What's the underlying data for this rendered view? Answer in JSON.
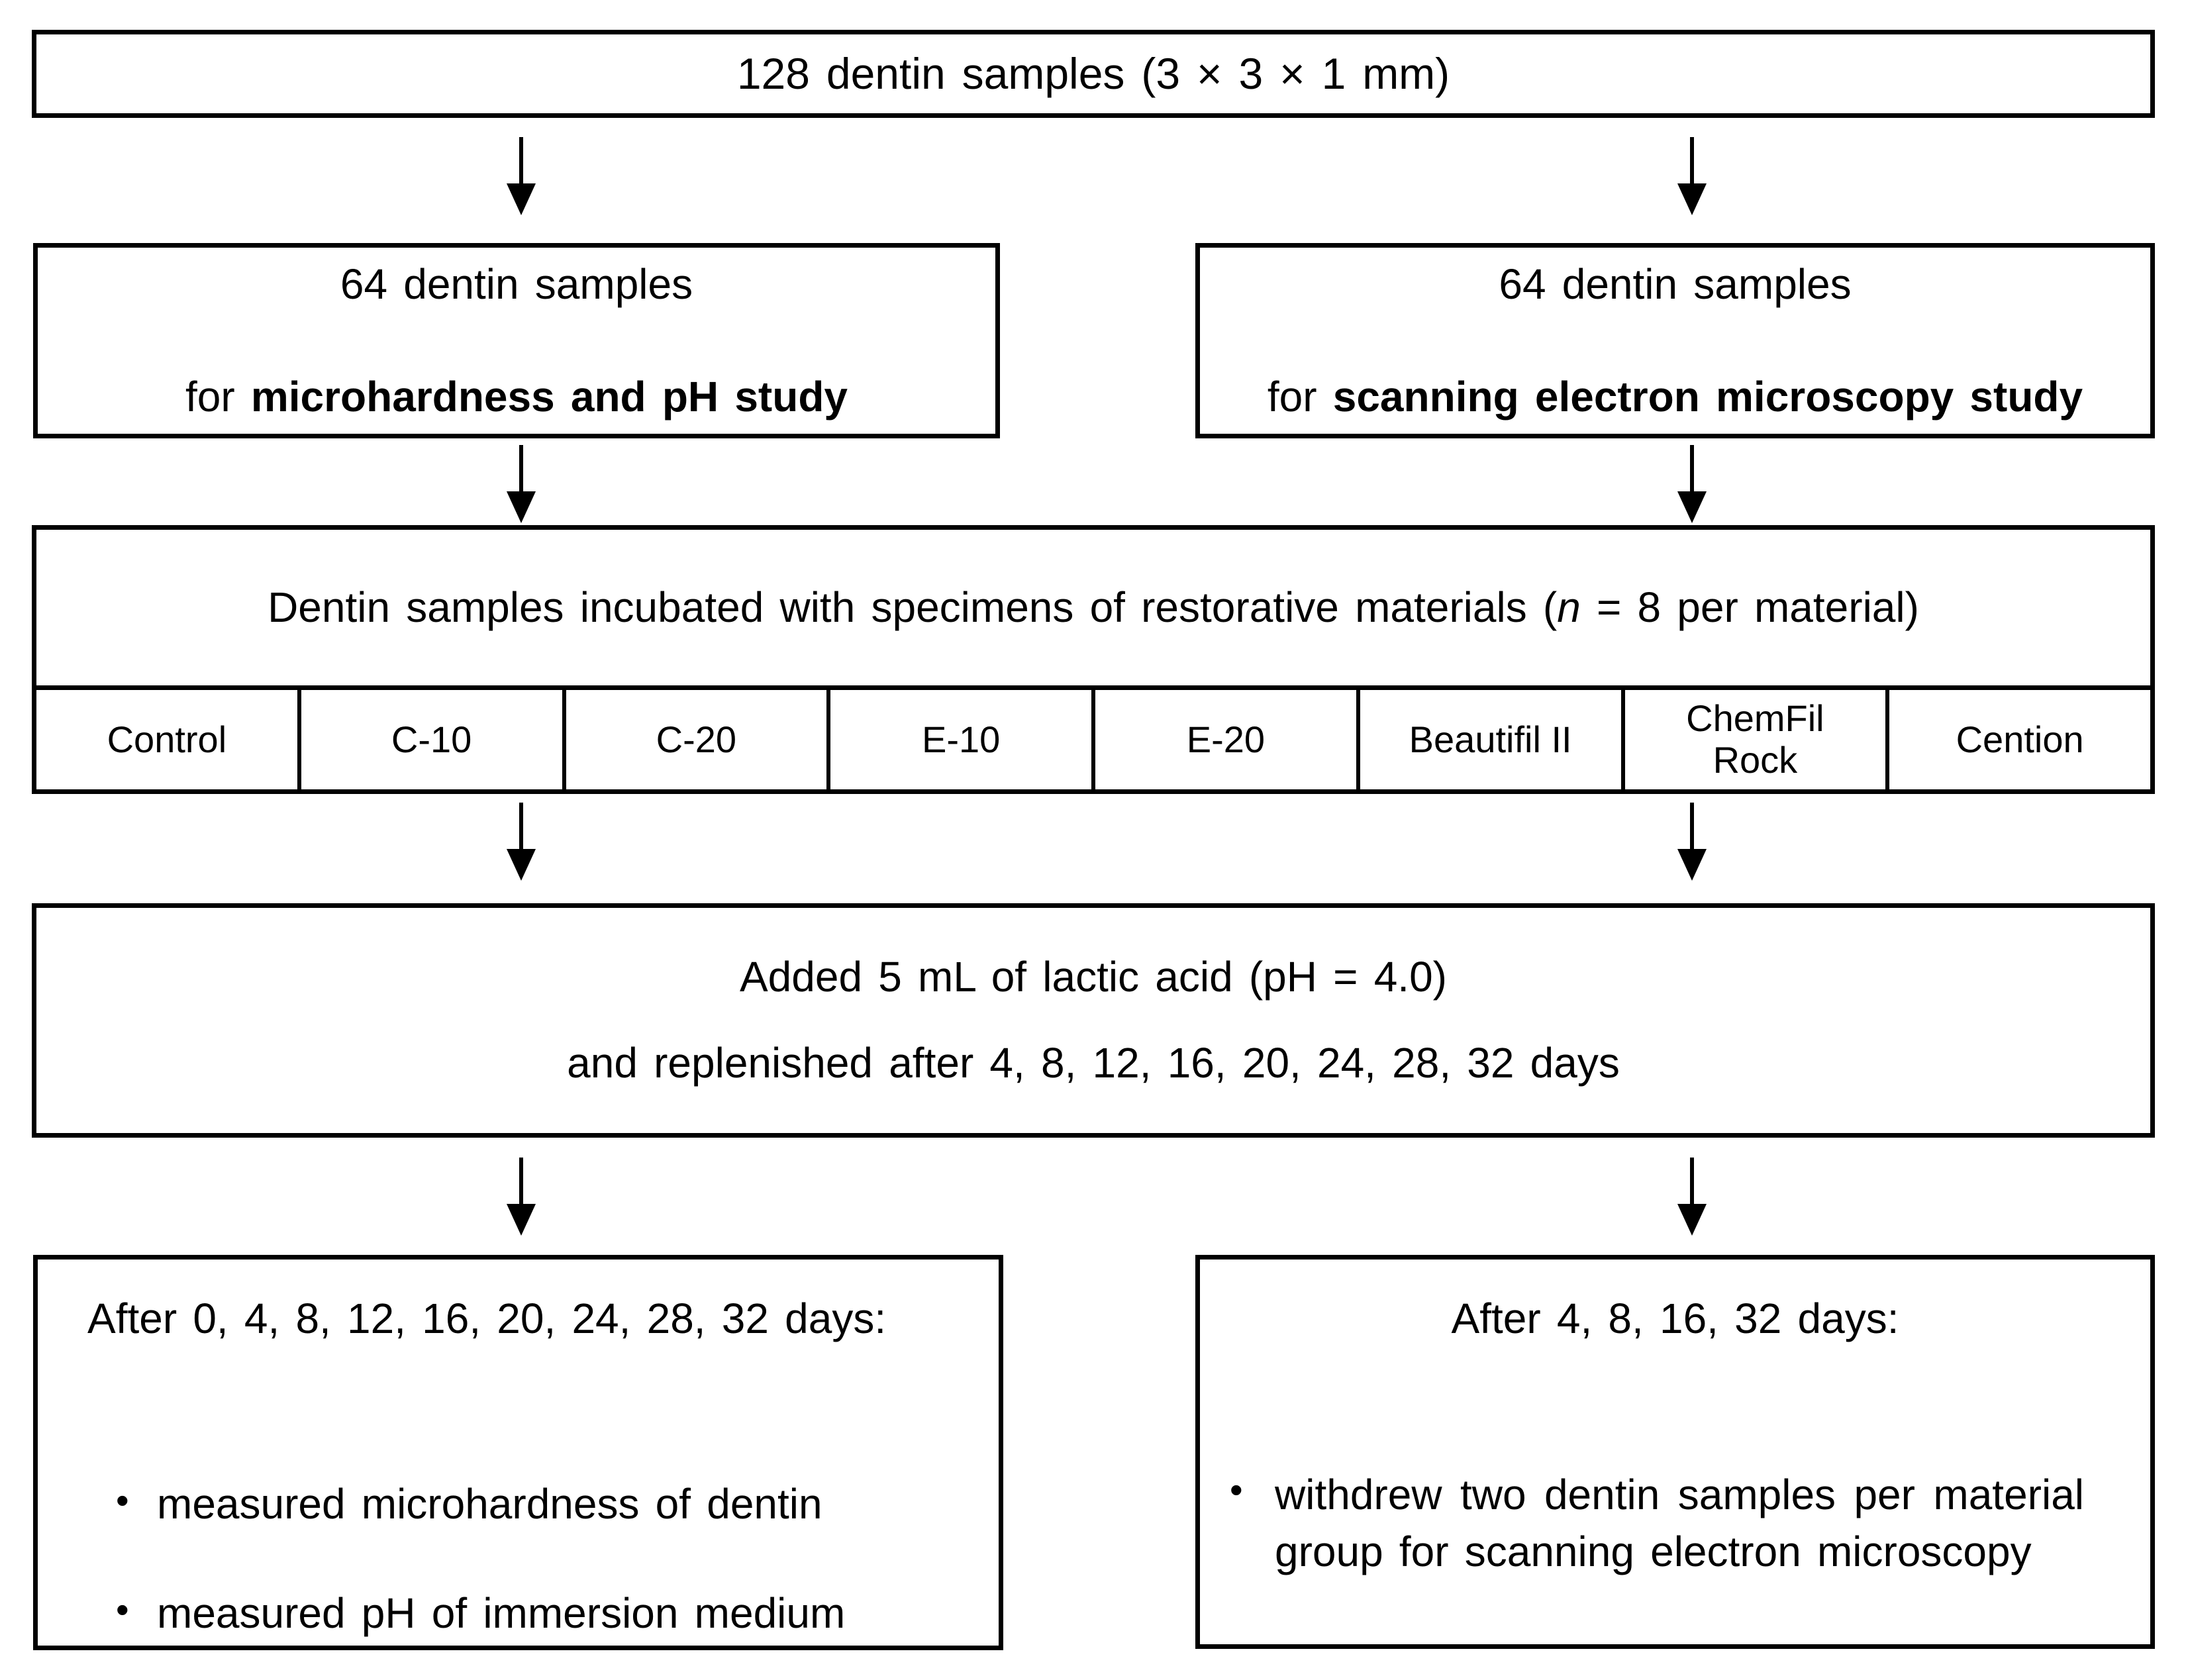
{
  "top_box": {
    "text": "128 dentin samples (3 × 3 × 1 mm)"
  },
  "branch_left": {
    "line1": "64 dentin samples",
    "for_prefix": "for ",
    "bold_text": "microhardness and pH study"
  },
  "branch_right": {
    "line1": "64 dentin samples",
    "for_prefix": "for ",
    "bold_text": "scanning electron microscopy study"
  },
  "incubation": {
    "text_before_n": "Dentin samples incubated with specimens of restorative materials (",
    "italic_n": "n",
    "text_after_n": " = 8 per material)"
  },
  "materials": [
    "Control",
    "C-10",
    "C-20",
    "E-10",
    "E-20",
    "Beautifil II",
    "ChemFil Rock",
    "Cention"
  ],
  "acid_box": {
    "line1": "Added 5 mL of lactic acid (pH = 4.0)",
    "line2": "and replenished after 4, 8, 12, 16, 20, 24, 28, 32 days"
  },
  "outcome_left": {
    "title": "After 0, 4, 8, 12, 16, 20, 24, 28, 32 days:",
    "bullet_marker": "•",
    "bullets": [
      "measured microhardness of dentin",
      "measured pH of immersion medium"
    ]
  },
  "outcome_right": {
    "title": "After 4, 8, 16, 32 days:",
    "bullet_marker": "•",
    "bullets": [
      "withdrew two dentin samples per material group for scanning electron microscopy"
    ]
  }
}
